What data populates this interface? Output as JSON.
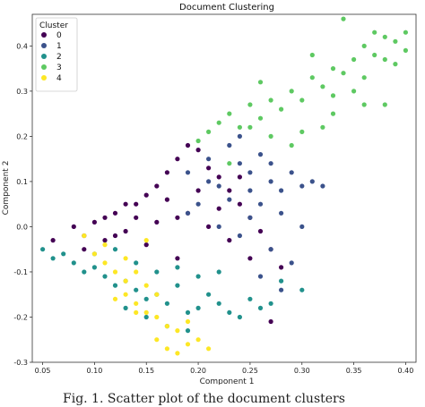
{
  "chart_data": {
    "type": "scatter",
    "title": "Document Clustering",
    "xlabel": "Component 1",
    "ylabel": "Component 2",
    "xlim": [
      0.04,
      0.41
    ],
    "ylim": [
      -0.3,
      0.47
    ],
    "xticks": [
      "0.05",
      "0.10",
      "0.15",
      "0.20",
      "0.25",
      "0.30",
      "0.35",
      "0.40"
    ],
    "yticks": [
      "-0.3",
      "-0.2",
      "-0.1",
      "0.0",
      "0.1",
      "0.2",
      "0.3",
      "0.4"
    ],
    "legend": {
      "title": "Cluster",
      "placement": "top-left"
    },
    "grid": false,
    "series": [
      {
        "name": "0",
        "color": "#440154",
        "points": [
          [
            0.06,
            -0.03
          ],
          [
            0.08,
            0.0
          ],
          [
            0.09,
            -0.02
          ],
          [
            0.1,
            0.01
          ],
          [
            0.11,
            -0.03
          ],
          [
            0.12,
            0.03
          ],
          [
            0.13,
            0.05
          ],
          [
            0.14,
            0.02
          ],
          [
            0.15,
            0.07
          ],
          [
            0.16,
            0.09
          ],
          [
            0.17,
            0.12
          ],
          [
            0.18,
            0.15
          ],
          [
            0.19,
            0.18
          ],
          [
            0.2,
            0.17
          ],
          [
            0.21,
            0.13
          ],
          [
            0.22,
            0.11
          ],
          [
            0.23,
            0.08
          ],
          [
            0.24,
            0.05
          ],
          [
            0.25,
            0.02
          ],
          [
            0.26,
            -0.01
          ],
          [
            0.27,
            -0.05
          ],
          [
            0.28,
            -0.09
          ],
          [
            0.27,
            -0.21
          ],
          [
            0.18,
            -0.07
          ],
          [
            0.15,
            -0.04
          ],
          [
            0.13,
            -0.01
          ],
          [
            0.11,
            0.02
          ],
          [
            0.09,
            -0.05
          ],
          [
            0.17,
            0.06
          ],
          [
            0.19,
            0.03
          ],
          [
            0.21,
            0.0
          ],
          [
            0.23,
            -0.03
          ],
          [
            0.16,
            0.01
          ],
          [
            0.14,
            0.05
          ],
          [
            0.12,
            -0.02
          ],
          [
            0.2,
            0.08
          ],
          [
            0.22,
            0.04
          ],
          [
            0.18,
            0.02
          ],
          [
            0.24,
            0.11
          ],
          [
            0.25,
            -0.07
          ]
        ]
      },
      {
        "name": "1",
        "color": "#3b528b",
        "points": [
          [
            0.19,
            0.12
          ],
          [
            0.21,
            0.15
          ],
          [
            0.22,
            0.09
          ],
          [
            0.23,
            0.18
          ],
          [
            0.24,
            0.14
          ],
          [
            0.25,
            0.12
          ],
          [
            0.26,
            0.16
          ],
          [
            0.27,
            0.1
          ],
          [
            0.28,
            0.08
          ],
          [
            0.29,
            0.12
          ],
          [
            0.3,
            0.09
          ],
          [
            0.31,
            0.1
          ],
          [
            0.26,
            0.05
          ],
          [
            0.25,
            0.02
          ],
          [
            0.28,
            0.03
          ],
          [
            0.24,
            -0.02
          ],
          [
            0.27,
            -0.05
          ],
          [
            0.29,
            -0.08
          ],
          [
            0.22,
            0.0
          ],
          [
            0.2,
            0.05
          ],
          [
            0.26,
            -0.11
          ],
          [
            0.28,
            -0.14
          ],
          [
            0.23,
            0.06
          ],
          [
            0.21,
            0.1
          ],
          [
            0.19,
            0.03
          ],
          [
            0.3,
            0.0
          ],
          [
            0.32,
            0.09
          ],
          [
            0.25,
            0.08
          ],
          [
            0.24,
            0.2
          ],
          [
            0.27,
            0.14
          ]
        ]
      },
      {
        "name": "2",
        "color": "#21918c",
        "points": [
          [
            0.05,
            -0.05
          ],
          [
            0.06,
            -0.07
          ],
          [
            0.07,
            -0.06
          ],
          [
            0.08,
            -0.08
          ],
          [
            0.09,
            -0.1
          ],
          [
            0.1,
            -0.09
          ],
          [
            0.11,
            -0.11
          ],
          [
            0.12,
            -0.13
          ],
          [
            0.13,
            -0.12
          ],
          [
            0.14,
            -0.14
          ],
          [
            0.15,
            -0.16
          ],
          [
            0.16,
            -0.15
          ],
          [
            0.17,
            -0.17
          ],
          [
            0.18,
            -0.13
          ],
          [
            0.19,
            -0.19
          ],
          [
            0.2,
            -0.18
          ],
          [
            0.21,
            -0.15
          ],
          [
            0.22,
            -0.17
          ],
          [
            0.23,
            -0.19
          ],
          [
            0.24,
            -0.2
          ],
          [
            0.25,
            -0.16
          ],
          [
            0.26,
            -0.18
          ],
          [
            0.27,
            -0.17
          ],
          [
            0.28,
            -0.12
          ],
          [
            0.3,
            -0.14
          ],
          [
            0.12,
            -0.05
          ],
          [
            0.14,
            -0.08
          ],
          [
            0.16,
            -0.1
          ],
          [
            0.18,
            -0.09
          ],
          [
            0.2,
            -0.11
          ],
          [
            0.22,
            -0.1
          ],
          [
            0.1,
            -0.06
          ],
          [
            0.13,
            -0.18
          ],
          [
            0.17,
            -0.22
          ],
          [
            0.19,
            -0.23
          ],
          [
            0.15,
            -0.2
          ]
        ]
      },
      {
        "name": "3",
        "color": "#5ec962",
        "points": [
          [
            0.2,
            0.19
          ],
          [
            0.21,
            0.21
          ],
          [
            0.22,
            0.23
          ],
          [
            0.23,
            0.25
          ],
          [
            0.24,
            0.22
          ],
          [
            0.25,
            0.27
          ],
          [
            0.26,
            0.24
          ],
          [
            0.27,
            0.28
          ],
          [
            0.28,
            0.26
          ],
          [
            0.29,
            0.3
          ],
          [
            0.3,
            0.28
          ],
          [
            0.31,
            0.33
          ],
          [
            0.32,
            0.31
          ],
          [
            0.33,
            0.35
          ],
          [
            0.34,
            0.34
          ],
          [
            0.35,
            0.37
          ],
          [
            0.36,
            0.4
          ],
          [
            0.37,
            0.38
          ],
          [
            0.38,
            0.42
          ],
          [
            0.39,
            0.41
          ],
          [
            0.4,
            0.39
          ],
          [
            0.34,
            0.46
          ],
          [
            0.37,
            0.43
          ],
          [
            0.38,
            0.27
          ],
          [
            0.36,
            0.27
          ],
          [
            0.33,
            0.29
          ],
          [
            0.3,
            0.21
          ],
          [
            0.29,
            0.18
          ],
          [
            0.33,
            0.25
          ],
          [
            0.35,
            0.3
          ],
          [
            0.27,
            0.2
          ],
          [
            0.26,
            0.32
          ],
          [
            0.31,
            0.38
          ],
          [
            0.23,
            0.14
          ],
          [
            0.25,
            0.22
          ],
          [
            0.36,
            0.33
          ],
          [
            0.39,
            0.36
          ],
          [
            0.4,
            0.43
          ],
          [
            0.32,
            0.22
          ],
          [
            0.38,
            0.37
          ]
        ]
      },
      {
        "name": "4",
        "color": "#fde725",
        "points": [
          [
            0.09,
            -0.02
          ],
          [
            0.1,
            -0.06
          ],
          [
            0.11,
            -0.08
          ],
          [
            0.12,
            -0.1
          ],
          [
            0.13,
            -0.15
          ],
          [
            0.14,
            -0.17
          ],
          [
            0.15,
            -0.19
          ],
          [
            0.16,
            -0.2
          ],
          [
            0.17,
            -0.22
          ],
          [
            0.18,
            -0.23
          ],
          [
            0.19,
            -0.26
          ],
          [
            0.2,
            -0.25
          ],
          [
            0.16,
            -0.25
          ],
          [
            0.17,
            -0.27
          ],
          [
            0.18,
            -0.28
          ],
          [
            0.19,
            -0.21
          ],
          [
            0.15,
            -0.13
          ],
          [
            0.13,
            -0.12
          ],
          [
            0.12,
            -0.16
          ],
          [
            0.14,
            -0.1
          ],
          [
            0.11,
            -0.04
          ],
          [
            0.16,
            -0.15
          ],
          [
            0.14,
            -0.19
          ],
          [
            0.21,
            -0.27
          ],
          [
            0.15,
            -0.03
          ],
          [
            0.13,
            -0.07
          ]
        ]
      }
    ]
  },
  "caption": "Fig. 1.   Scatter plot of the document clusters"
}
